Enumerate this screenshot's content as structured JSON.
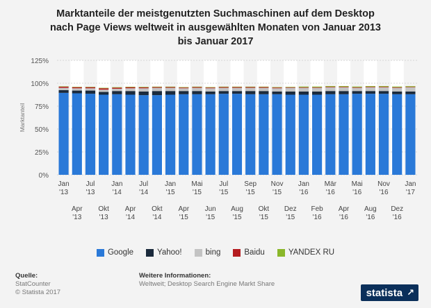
{
  "title_lines": [
    "Marktanteile der meistgenutzten Suchmaschinen auf dem Desktop",
    "nach Page Views weltweit in ausgewählten Monaten von Januar 2013",
    "bis Januar 2017"
  ],
  "colors": {
    "google": "#2a79d8",
    "yahoo": "#1b2a3c",
    "bing": "#c3c3c3",
    "baidu": "#b51c20",
    "yandex": "#8ab72a"
  },
  "chart_data": {
    "type": "bar",
    "stacked": true,
    "ylabel": "Marktanteil",
    "ylim": [
      0,
      125
    ],
    "yticks": [
      0,
      25,
      50,
      75,
      100,
      125
    ],
    "ytick_labels": [
      "0%",
      "25%",
      "50%",
      "75%",
      "100%",
      "125%"
    ],
    "grid": true,
    "legend_position": "bottom",
    "categories": [
      [
        "Jan",
        "'13"
      ],
      [
        "Apr",
        "'13"
      ],
      [
        "Jul",
        "'13"
      ],
      [
        "Okt",
        "'13"
      ],
      [
        "Jan",
        "'14"
      ],
      [
        "Apr",
        "'14"
      ],
      [
        "Jul",
        "'14"
      ],
      [
        "Okt",
        "'14"
      ],
      [
        "Jan",
        "'15"
      ],
      [
        "Apr",
        "'15"
      ],
      [
        "Mai",
        "'15"
      ],
      [
        "Jun",
        "'15"
      ],
      [
        "Jul",
        "'15"
      ],
      [
        "Aug",
        "'15"
      ],
      [
        "Sep",
        "'15"
      ],
      [
        "Okt",
        "'15"
      ],
      [
        "Nov",
        "'15"
      ],
      [
        "Dez",
        "'15"
      ],
      [
        "Jan",
        "'16"
      ],
      [
        "Feb",
        "'16"
      ],
      [
        "Mär",
        "'16"
      ],
      [
        "Apr",
        "'16"
      ],
      [
        "Mai",
        "'16"
      ],
      [
        "Aug",
        "'16"
      ],
      [
        "Nov",
        "'16"
      ],
      [
        "Dez",
        "'16"
      ],
      [
        "Jan",
        "'17"
      ]
    ],
    "series": [
      {
        "name": "Google",
        "values": [
          89.5,
          89,
          88.5,
          87.5,
          88,
          87.5,
          87,
          87,
          87.5,
          88,
          88,
          88,
          88.5,
          88.5,
          88,
          88,
          88,
          87.5,
          87.5,
          87.5,
          88,
          88,
          88.5,
          88.5,
          88.5,
          88,
          88
        ]
      },
      {
        "name": "Yahoo!",
        "values": [
          3,
          3,
          3.5,
          3,
          3.5,
          4,
          4,
          4.5,
          4,
          3.5,
          3.5,
          3,
          3,
          3,
          3.5,
          3.5,
          3,
          3.5,
          3.5,
          3.5,
          3.5,
          3.5,
          3,
          3,
          3,
          3,
          3
        ]
      },
      {
        "name": "bing",
        "values": [
          2.5,
          2.5,
          2.5,
          2.5,
          2.5,
          3,
          3.5,
          3.5,
          3.5,
          3,
          3.5,
          3.5,
          3.5,
          3.5,
          3.5,
          3.5,
          3.5,
          4,
          4,
          4,
          4,
          4,
          3.5,
          4,
          4,
          4,
          4.5
        ]
      },
      {
        "name": "Baidu",
        "values": [
          1.2,
          1.2,
          1.2,
          1.5,
          1.2,
          1.2,
          1,
          0.8,
          0.8,
          0.8,
          0.8,
          0.8,
          0.8,
          0.8,
          0.8,
          0.8,
          0.8,
          0.6,
          0.6,
          0.6,
          0.6,
          0.6,
          0.6,
          0.6,
          0.6,
          0.6,
          0.5
        ]
      },
      {
        "name": "YANDEX RU",
        "values": [
          0.4,
          0.4,
          0.4,
          0.5,
          0.5,
          0.5,
          0.5,
          0.5,
          0.5,
          0.5,
          0.5,
          0.5,
          0.5,
          0.5,
          0.5,
          0.5,
          0.5,
          0.5,
          0.8,
          0.8,
          0.8,
          0.8,
          0.8,
          0.8,
          0.8,
          0.8,
          0.8
        ]
      }
    ]
  },
  "footer": {
    "source_head": "Quelle:",
    "source_line1": "StatCounter",
    "source_line2": "© Statista 2017",
    "info_head": "Weitere Informationen:",
    "info_line": "Weltweit; Desktop Search Engine Markt Share"
  },
  "logo": {
    "text": "statista",
    "icon": "arrow-icon"
  }
}
